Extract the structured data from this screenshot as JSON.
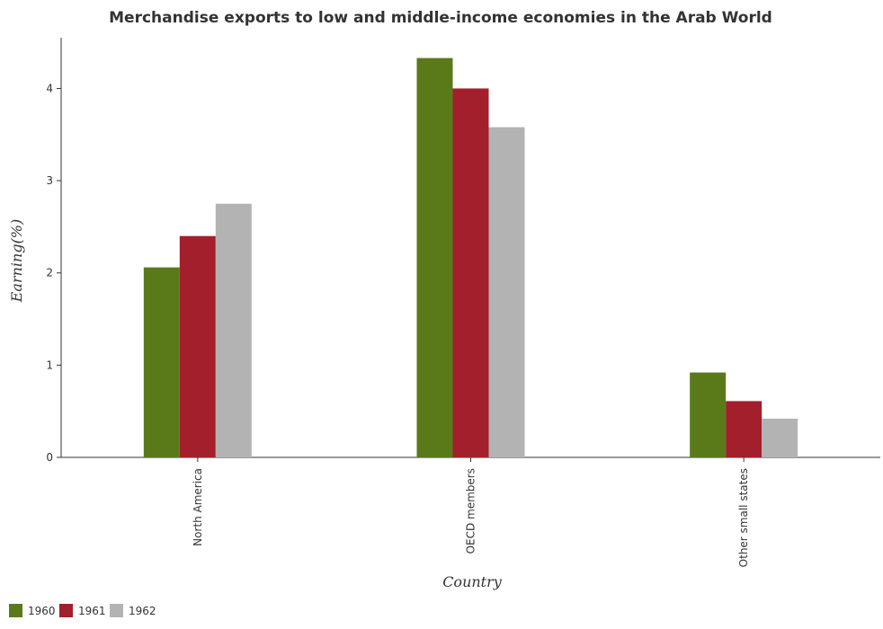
{
  "chart_data": {
    "type": "bar",
    "title": "Merchandise exports to low and middle-income economies in the Arab World",
    "xlabel": "Country",
    "ylabel": "Earning(%)",
    "categories": [
      "North America",
      "OECD members",
      "Other small states"
    ],
    "series": [
      {
        "name": "1960",
        "color": "#5a7a1a",
        "values": [
          2.06,
          4.33,
          0.92
        ]
      },
      {
        "name": "1961",
        "color": "#a31f2c",
        "values": [
          2.4,
          4.0,
          0.61
        ]
      },
      {
        "name": "1962",
        "color": "#b3b3b3",
        "values": [
          2.75,
          3.58,
          0.42
        ]
      }
    ],
    "ylim": [
      0,
      4.55
    ],
    "yticks": [
      0,
      1,
      2,
      3,
      4
    ],
    "grid": false,
    "legend_position": "bottom-left"
  }
}
